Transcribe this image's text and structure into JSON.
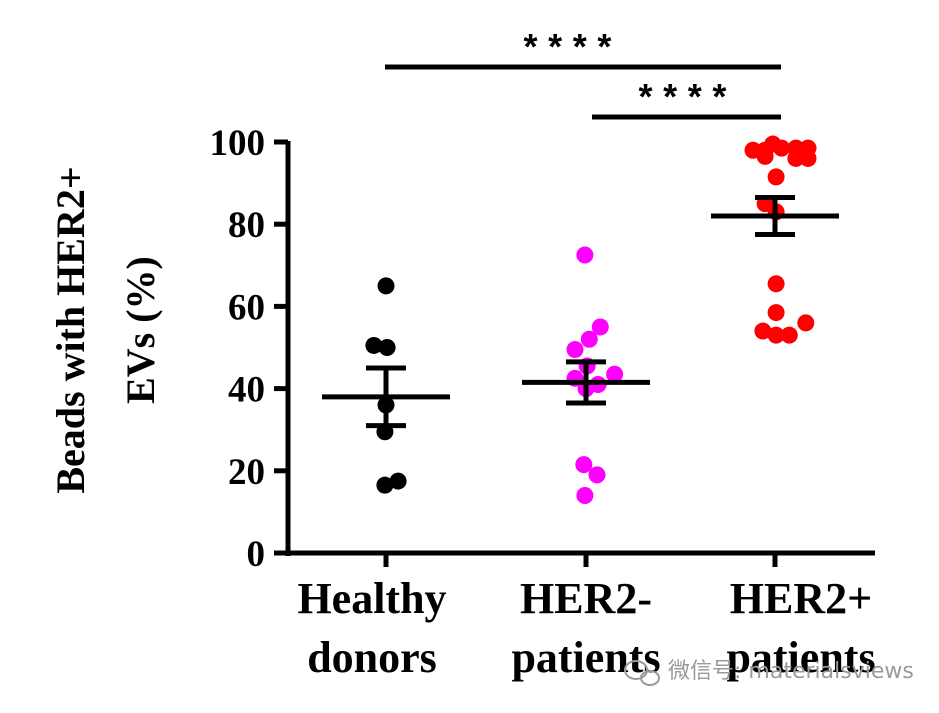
{
  "chart_data": {
    "type": "scatter",
    "ylabel_lines": [
      "Beads with HER2+",
      "EVs (%)"
    ],
    "ylim": [
      0,
      100
    ],
    "yticks": [
      0,
      20,
      40,
      60,
      80,
      100
    ],
    "categories": [
      {
        "line1": "Healthy",
        "line2": "donors"
      },
      {
        "line1": "HER2-",
        "line2": "patients"
      },
      {
        "line1": "HER2+",
        "line2": "patients"
      }
    ],
    "series": [
      {
        "name": "Healthy donors",
        "color": "#000000",
        "mean": 38,
        "sem_upper": 45,
        "sem_lower": 31,
        "points": [
          {
            "dx": 0.0,
            "y": 65
          },
          {
            "dx": -0.55,
            "y": 50.5
          },
          {
            "dx": 0.05,
            "y": 50
          },
          {
            "dx": 0.0,
            "y": 36
          },
          {
            "dx": -0.05,
            "y": 29.5
          },
          {
            "dx": -0.05,
            "y": 16.5
          },
          {
            "dx": 0.55,
            "y": 17.5
          }
        ]
      },
      {
        "name": "HER2- patients",
        "color": "#ff00ff",
        "mean": 41.5,
        "sem_upper": 46.5,
        "sem_lower": 36.5,
        "points": [
          {
            "dx": -0.05,
            "y": 72.5
          },
          {
            "dx": 0.65,
            "y": 55
          },
          {
            "dx": 0.15,
            "y": 52
          },
          {
            "dx": -0.5,
            "y": 49.5
          },
          {
            "dx": 0.05,
            "y": 45.5
          },
          {
            "dx": 1.3,
            "y": 43.5
          },
          {
            "dx": -0.5,
            "y": 42.5
          },
          {
            "dx": 0.0,
            "y": 40
          },
          {
            "dx": 0.55,
            "y": 41
          },
          {
            "dx": -0.1,
            "y": 21.5
          },
          {
            "dx": 0.5,
            "y": 19
          },
          {
            "dx": -0.05,
            "y": 14
          }
        ]
      },
      {
        "name": "HER2+ patients",
        "color": "#ff0000",
        "mean": 82,
        "sem_upper": 86.5,
        "sem_lower": 77.5,
        "points": [
          {
            "dx": -1.0,
            "y": 98
          },
          {
            "dx": -0.45,
            "y": 98
          },
          {
            "dx": -0.1,
            "y": 99.5
          },
          {
            "dx": 0.3,
            "y": 98.5
          },
          {
            "dx": 0.95,
            "y": 98.5
          },
          {
            "dx": 1.5,
            "y": 98.5
          },
          {
            "dx": -0.45,
            "y": 96.5
          },
          {
            "dx": 0.95,
            "y": 96
          },
          {
            "dx": 1.5,
            "y": 96
          },
          {
            "dx": 0.05,
            "y": 91.5
          },
          {
            "dx": -0.45,
            "y": 85
          },
          {
            "dx": 0.05,
            "y": 83
          },
          {
            "dx": 0.05,
            "y": 65.5
          },
          {
            "dx": 0.05,
            "y": 58.5
          },
          {
            "dx": 1.4,
            "y": 56
          },
          {
            "dx": -0.55,
            "y": 54
          },
          {
            "dx": 0.05,
            "y": 53
          },
          {
            "dx": 0.65,
            "y": 53
          }
        ]
      }
    ],
    "significance": [
      {
        "from": 0,
        "to": 2,
        "label": "****"
      },
      {
        "from": 1,
        "to": 2,
        "label": "****"
      }
    ]
  },
  "watermark": "微信号: materialsviews"
}
